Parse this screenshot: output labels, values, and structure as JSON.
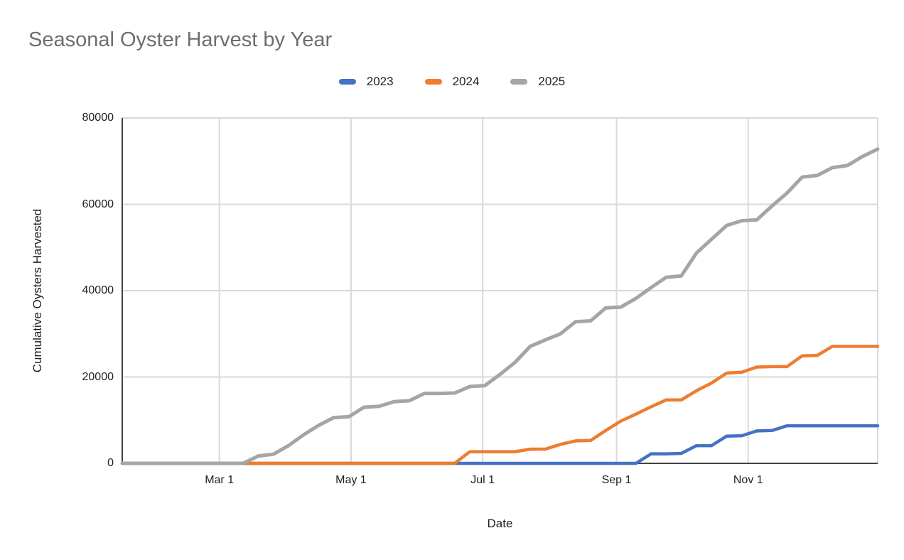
{
  "chart_data": {
    "type": "line",
    "title": "Seasonal Oyster Harvest by Year",
    "xlabel": "Date",
    "ylabel": "Cumulative Oysters Harvested",
    "legend_position": "top",
    "grid": true,
    "ylim": [
      0,
      80000
    ],
    "y_ticks": [
      0,
      20000,
      40000,
      60000,
      80000
    ],
    "x_start_date": "Jan 15",
    "x_interval_days": 7,
    "x_total_days": 350,
    "x_ticks": [
      {
        "label": "Mar 1",
        "day": 45
      },
      {
        "label": "May 1",
        "day": 106
      },
      {
        "label": "Jul 1",
        "day": 167
      },
      {
        "label": "Sep 1",
        "day": 229
      },
      {
        "label": "Nov 1",
        "day": 290
      }
    ],
    "grid_color": "#d9d9d9",
    "axis_color": "#424242",
    "title_color": "#6e6e6e",
    "text_color": "#1f1f1f",
    "series": [
      {
        "name": "2023",
        "color": "#4472c4",
        "values": [
          0,
          0,
          0,
          0,
          0,
          0,
          0,
          0,
          0,
          0,
          0,
          0,
          0,
          0,
          0,
          0,
          0,
          0,
          0,
          0,
          0,
          0,
          0,
          0,
          0,
          0,
          0,
          0,
          0,
          0,
          0,
          0,
          0,
          0,
          0,
          2200,
          2200,
          2300,
          4100,
          4100,
          6300,
          6400,
          7500,
          7600,
          8700,
          8700,
          8700,
          8700,
          8700,
          8700,
          8700
        ]
      },
      {
        "name": "2024",
        "color": "#ed7d31",
        "values": [
          0,
          0,
          0,
          0,
          0,
          0,
          0,
          0,
          0,
          0,
          0,
          0,
          0,
          0,
          0,
          0,
          0,
          0,
          0,
          0,
          0,
          0,
          0,
          2700,
          2700,
          2700,
          2700,
          3300,
          3300,
          4400,
          5200,
          5300,
          7600,
          9800,
          11400,
          13100,
          14700,
          14700,
          16800,
          18600,
          20900,
          21100,
          22300,
          22400,
          22400,
          24900,
          25000,
          27100,
          27100,
          27100,
          27100
        ]
      },
      {
        "name": "2025",
        "color": "#a5a5a5",
        "values": [
          0,
          0,
          0,
          0,
          0,
          0,
          0,
          0,
          0,
          1700,
          2100,
          4100,
          6600,
          8800,
          10600,
          10800,
          13000,
          13200,
          14300,
          14500,
          16200,
          16200,
          16300,
          17800,
          18000,
          20600,
          23400,
          27100,
          28600,
          30000,
          32800,
          33000,
          36000,
          36200,
          38200,
          40700,
          43100,
          43400,
          48700,
          51900,
          55100,
          56200,
          56400,
          59600,
          62600,
          66300,
          66700,
          68500,
          69000,
          71100,
          72800
        ]
      }
    ]
  }
}
